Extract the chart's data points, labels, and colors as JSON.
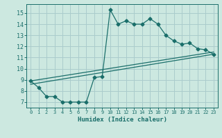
{
  "title": "",
  "xlabel": "Humidex (Indice chaleur)",
  "ylabel": "",
  "background_color": "#cce8e0",
  "grid_color": "#aacccc",
  "line_color": "#1a6e6a",
  "xlim": [
    -0.5,
    23.5
  ],
  "ylim": [
    6.5,
    15.8
  ],
  "xticks": [
    0,
    1,
    2,
    3,
    4,
    5,
    6,
    7,
    8,
    9,
    10,
    11,
    12,
    13,
    14,
    15,
    16,
    17,
    18,
    19,
    20,
    21,
    22,
    23
  ],
  "yticks": [
    7,
    8,
    9,
    10,
    11,
    12,
    13,
    14,
    15
  ],
  "line1_x": [
    0,
    1,
    2,
    3,
    4,
    5,
    6,
    7,
    8,
    9,
    10,
    11,
    12,
    13,
    14,
    15,
    16,
    17,
    18,
    19,
    20,
    21,
    22,
    23
  ],
  "line1_y": [
    8.9,
    8.3,
    7.5,
    7.5,
    7.0,
    7.0,
    7.0,
    7.0,
    9.2,
    9.3,
    15.3,
    14.0,
    14.3,
    14.0,
    14.0,
    14.5,
    14.0,
    13.0,
    12.5,
    12.2,
    12.3,
    11.8,
    11.7,
    11.3
  ],
  "line2_y_start": 8.6,
  "line2_y_end": 11.3,
  "line3_y_start": 8.9,
  "line3_y_end": 11.5
}
